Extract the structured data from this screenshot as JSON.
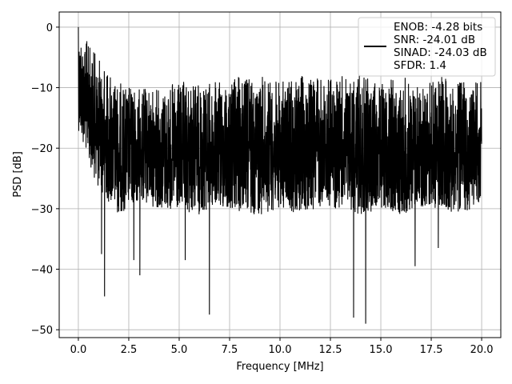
{
  "chart_data": {
    "type": "line",
    "title": "",
    "xlabel": "Frequency [MHz]",
    "ylabel": "PSD [dB]",
    "xlim": [
      -0.95,
      20.95
    ],
    "ylim": [
      -51.3,
      2.5
    ],
    "xticks": [
      0.0,
      2.5,
      5.0,
      7.5,
      10.0,
      12.5,
      15.0,
      17.5,
      20.0
    ],
    "xtick_labels": [
      "0.0",
      "2.5",
      "5.0",
      "7.5",
      "10.0",
      "12.5",
      "15.0",
      "17.5",
      "20.0"
    ],
    "yticks": [
      0,
      -10,
      -20,
      -30,
      -40,
      -50
    ],
    "ytick_labels": [
      "0",
      "−10",
      "−20",
      "−30",
      "−40",
      "−50"
    ],
    "grid": true,
    "legend_position": "top-right",
    "legend_lines": [
      "ENOB: -4.28 bits",
      "SNR: -24.01 dB",
      "SINAD: -24.03 dB",
      "SFDR: 1.4"
    ],
    "series_color": "#000000",
    "series": [
      {
        "x_start": 0,
        "x_end": 20,
        "envelope_upper": [
          0,
          -5,
          -9,
          -10,
          -10,
          -9,
          -9,
          -9,
          -8,
          -8,
          -9,
          -8,
          -8,
          -8,
          -8,
          -9,
          -8,
          -9,
          -8,
          -9,
          -8.5
        ],
        "envelope_lower": [
          -17,
          -27,
          -31,
          -29,
          -30,
          -31,
          -31,
          -30,
          -31,
          -31,
          -30,
          -31,
          -30,
          -30,
          -31,
          -30,
          -31,
          -30,
          -30,
          -31,
          -29
        ],
        "spikes": [
          {
            "x": 0.0,
            "y": 0
          },
          {
            "x": 1.15,
            "y": -37.5
          },
          {
            "x": 1.3,
            "y": -44.5
          },
          {
            "x": 2.75,
            "y": -38.5
          },
          {
            "x": 3.05,
            "y": -41
          },
          {
            "x": 5.3,
            "y": -38.5
          },
          {
            "x": 6.5,
            "y": -47.5
          },
          {
            "x": 13.65,
            "y": -48
          },
          {
            "x": 14.25,
            "y": -49
          },
          {
            "x": 16.7,
            "y": -39.5
          },
          {
            "x": 17.85,
            "y": -36.5
          }
        ]
      }
    ]
  }
}
